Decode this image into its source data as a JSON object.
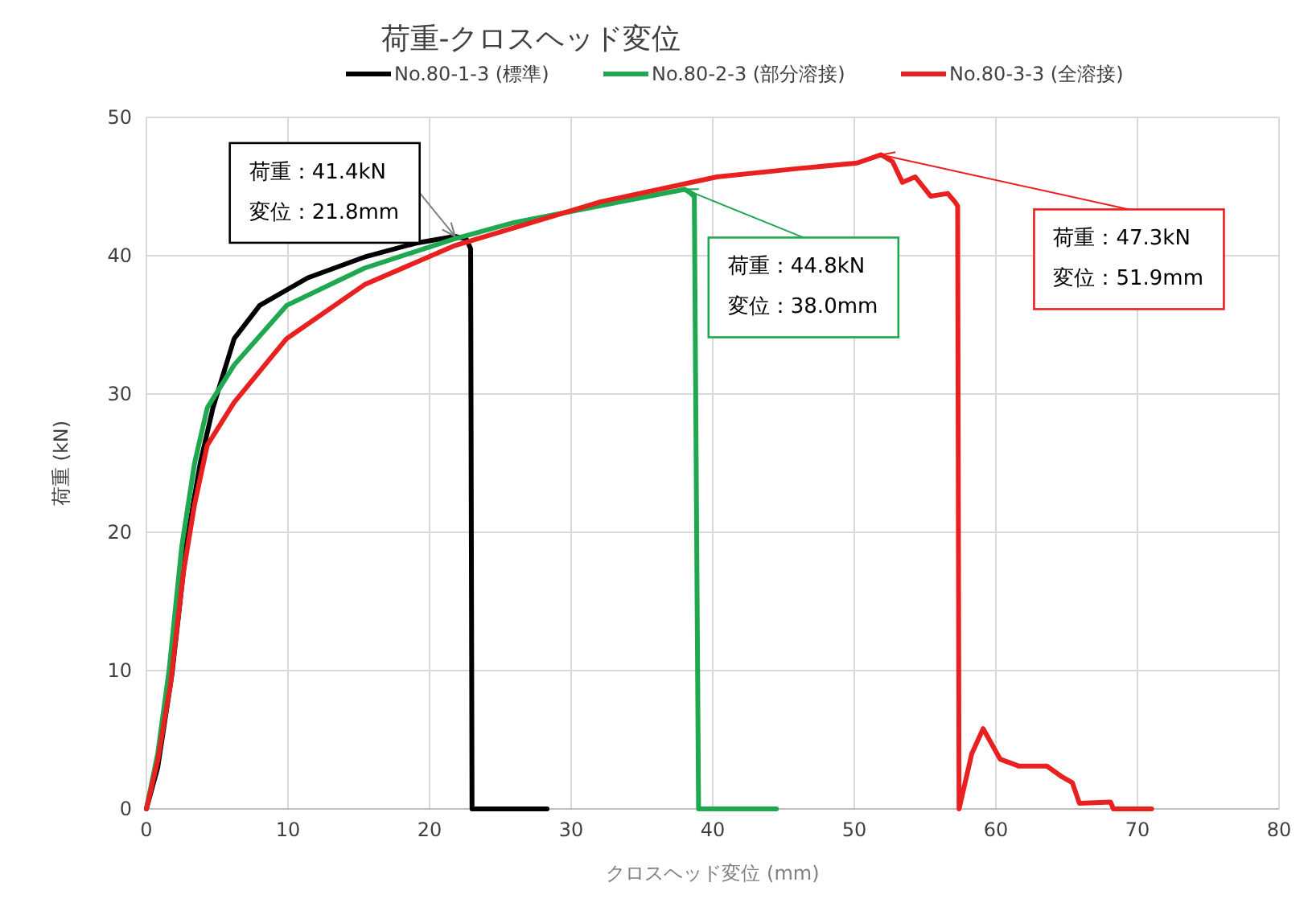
{
  "chart_data": {
    "type": "line",
    "title": "荷重-クロスヘッド変位",
    "xlabel": "クロスヘッド変位 (mm)",
    "ylabel": "荷重 (kN)",
    "xlim": [
      0,
      80
    ],
    "xticks": [
      0,
      10,
      20,
      30,
      40,
      50,
      60,
      70,
      80
    ],
    "ylim": [
      0,
      50
    ],
    "yticks": [
      0,
      10,
      20,
      30,
      40,
      50
    ],
    "grid": true,
    "legend": "top",
    "line_style": "solid",
    "marker": "none",
    "series": [
      {
        "name": "No.80-1-3 (標準)",
        "color": "#000000",
        "x": [
          0,
          0.8,
          1.8,
          2.85,
          3.8,
          4.7,
          6.2,
          8,
          11.4,
          15.4,
          19,
          21.8,
          22.6,
          22.9,
          23.0,
          28.3
        ],
        "values": [
          0,
          3,
          9.7,
          19.3,
          25,
          29,
          34,
          36.4,
          38.4,
          39.9,
          40.9,
          41.4,
          41.2,
          40.5,
          0,
          0
        ]
      },
      {
        "name": "No.80-2-3 (部分溶接)",
        "color": "#1fa84f",
        "x": [
          0,
          0.8,
          1.6,
          2.5,
          3.4,
          4.3,
          6.2,
          9.9,
          15.4,
          21.7,
          26,
          31,
          35,
          38.0,
          38.7,
          39.0,
          44.5
        ],
        "values": [
          0,
          4,
          10,
          19,
          25,
          29,
          32.1,
          36.4,
          39.1,
          41.2,
          42.4,
          43.4,
          44.2,
          44.8,
          44.4,
          0,
          0
        ]
      },
      {
        "name": "No.80-3-3 (全溶接)",
        "color": "#e8201f",
        "x": [
          0,
          0.8,
          1.7,
          2.6,
          3.4,
          4.3,
          6.2,
          9.9,
          15.4,
          21.7,
          32.1,
          40.3,
          46,
          50.2,
          51.9,
          52.7,
          53.4,
          54.3,
          55.4,
          56.6,
          57.1,
          57.3,
          57.4,
          58.3,
          59.1,
          60.3,
          61.6,
          63.6,
          64.7,
          65.4,
          65.9,
          68.1,
          68.3,
          71
        ],
        "values": [
          0,
          3.5,
          9,
          17,
          22,
          26.3,
          29.4,
          34,
          37.9,
          40.7,
          43.9,
          45.7,
          46.3,
          46.7,
          47.3,
          46.8,
          45.3,
          45.7,
          44.3,
          44.5,
          43.9,
          43.6,
          0,
          4,
          5.8,
          3.6,
          3.1,
          3.1,
          2.3,
          1.9,
          0.4,
          0.5,
          0,
          0
        ]
      }
    ],
    "annotations": [
      {
        "text": "荷重：41.4kN\n変位：21.8mm",
        "x": 21.8,
        "y": 41.4
      },
      {
        "text": "荷重：44.8kN\n変位：38.0mm",
        "x": 38.0,
        "y": 44.8
      },
      {
        "text": "荷重：47.3kN\n変位：51.9mm",
        "x": 51.9,
        "y": 47.3
      }
    ]
  }
}
